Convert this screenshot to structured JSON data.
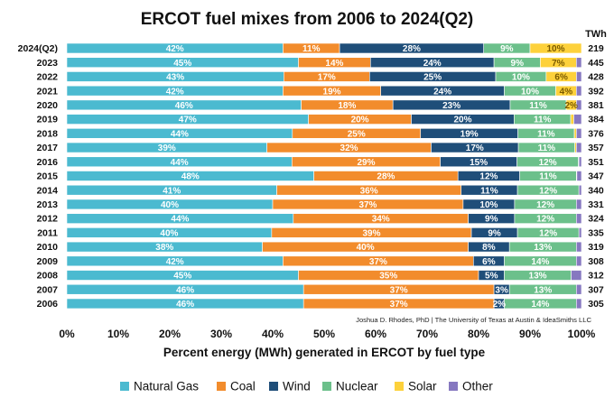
{
  "chart_data": {
    "type": "bar",
    "orientation": "horizontal",
    "stacked": true,
    "title": "ERCOT fuel mixes from 2006 to 2024(Q2)",
    "xlabel": "Percent energy (MWh) generated in ERCOT by fuel type",
    "ylabel": "",
    "xlim": [
      0,
      100
    ],
    "x_ticks": [
      "0%",
      "10%",
      "20%",
      "30%",
      "40%",
      "50%",
      "60%",
      "70%",
      "80%",
      "90%",
      "100%"
    ],
    "total_header": "TWh",
    "credit": "Joshua D. Rhodes, PhD | The University of Texas at Austin & IdeaSmiths LLC",
    "legend_position": "bottom",
    "grid": false,
    "categories": [
      "2024(Q2)",
      "2023",
      "2022",
      "2021",
      "2020",
      "2019",
      "2018",
      "2017",
      "2016",
      "2015",
      "2014",
      "2013",
      "2012",
      "2011",
      "2010",
      "2009",
      "2008",
      "2007",
      "2006"
    ],
    "totals_twh": [
      "219",
      "445",
      "428",
      "392",
      "381",
      "384",
      "376",
      "357",
      "351",
      "347",
      "340",
      "331",
      "324",
      "335",
      "319",
      "308",
      "312",
      "307",
      "305"
    ],
    "series": [
      {
        "name": "Natural Gas",
        "color": "#4bbad0",
        "values": [
          42,
          45,
          43,
          42,
          46,
          47,
          44,
          39,
          44,
          48,
          41,
          40,
          44,
          40,
          38,
          42,
          45,
          46,
          46
        ],
        "labels": [
          "42%",
          "45%",
          "43%",
          "42%",
          "46%",
          "47%",
          "44%",
          "39%",
          "44%",
          "48%",
          "41%",
          "40%",
          "44%",
          "40%",
          "38%",
          "42%",
          "45%",
          "46%",
          "46%"
        ]
      },
      {
        "name": "Coal",
        "color": "#f28c2c",
        "values": [
          11,
          14,
          17,
          19,
          18,
          20,
          25,
          32,
          29,
          28,
          36,
          37,
          34,
          39,
          40,
          37,
          35,
          37,
          37
        ],
        "labels": [
          "11%",
          "14%",
          "17%",
          "19%",
          "18%",
          "20%",
          "25%",
          "32%",
          "29%",
          "28%",
          "36%",
          "37%",
          "34%",
          "39%",
          "40%",
          "37%",
          "35%",
          "37%",
          "37%"
        ]
      },
      {
        "name": "Wind",
        "color": "#1f4e79",
        "values": [
          28,
          24,
          25,
          24,
          23,
          20,
          19,
          17,
          15,
          12,
          11,
          10,
          9,
          9,
          8,
          6,
          5,
          3,
          2
        ],
        "labels": [
          "28%",
          "24%",
          "25%",
          "24%",
          "23%",
          "20%",
          "19%",
          "17%",
          "15%",
          "12%",
          "11%",
          "10%",
          "9%",
          "9%",
          "8%",
          "6%",
          "5%",
          "3%",
          "2%"
        ]
      },
      {
        "name": "Nuclear",
        "color": "#6cc08b",
        "values": [
          9,
          9,
          10,
          10,
          11,
          11,
          11,
          11,
          12,
          11,
          12,
          12,
          12,
          12,
          13,
          14,
          13,
          13,
          14
        ],
        "labels": [
          "9%",
          "9%",
          "10%",
          "10%",
          "11%",
          "11%",
          "11%",
          "11%",
          "12%",
          "11%",
          "12%",
          "12%",
          "12%",
          "12%",
          "13%",
          "14%",
          "13%",
          "13%",
          "14%"
        ]
      },
      {
        "name": "Solar",
        "color": "#fdd13b",
        "values": [
          10,
          7,
          6,
          4,
          2,
          0.6,
          0.4,
          0.3,
          0.1,
          0.1,
          0,
          0,
          0,
          0,
          0,
          0,
          0,
          0,
          0
        ],
        "labels": [
          "10%",
          "7%",
          "6%",
          "4%",
          "2%",
          "",
          "",
          "",
          "",
          "",
          "",
          "",
          "",
          "",
          "",
          "",
          "",
          "",
          ""
        ]
      },
      {
        "name": "Other",
        "color": "#8678c0",
        "values": [
          0,
          1,
          1,
          1,
          1,
          1.5,
          1,
          1,
          0.5,
          0.9,
          0.5,
          1,
          1,
          0.5,
          1,
          1,
          2,
          1,
          1
        ],
        "labels": [
          "",
          "",
          "",
          "",
          "",
          "",
          "",
          "",
          "",
          "",
          "",
          "",
          "",
          "",
          "",
          "",
          "",
          "",
          ""
        ]
      }
    ]
  }
}
